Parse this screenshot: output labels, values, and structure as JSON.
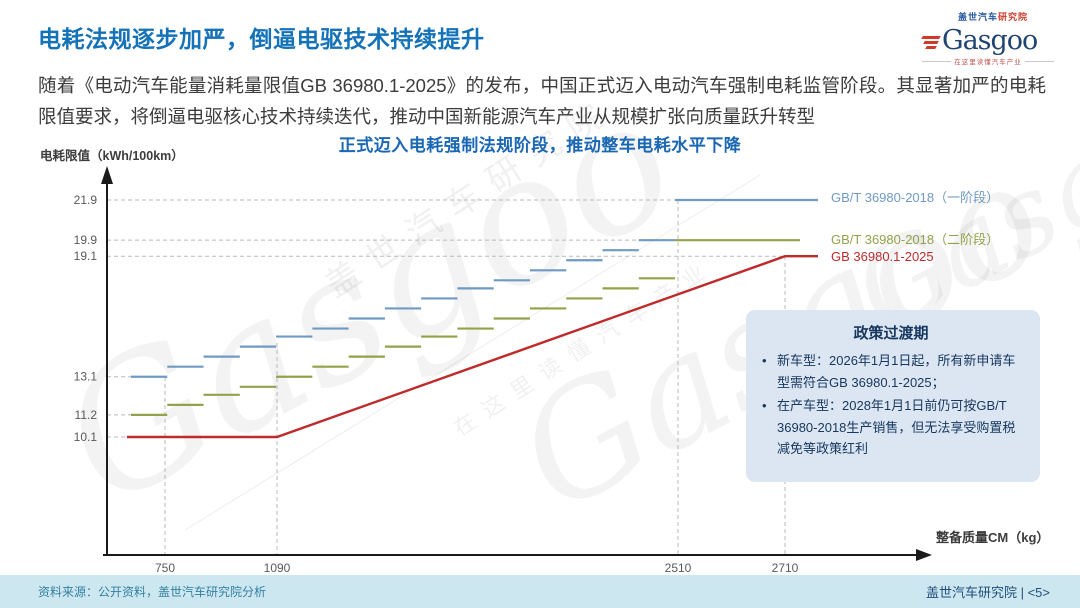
{
  "header": {
    "title": "电耗法规逐步加严，倒逼电驱技术持续提升",
    "logo": {
      "brand": "Gasgoo",
      "cn_blue": "盖世汽车",
      "cn_red": "研究院",
      "tagline": "在这里读懂汽车产业"
    }
  },
  "intro": {
    "text": "随着《电动汽车能量消耗量限值GB 36980.1-2025》的发布，中国正式迈入电动汽车强制电耗监管阶段。其显著加严的电耗限值要求，将倒逼电驱核心技术持续迭代，推动中国新能源汽车产业从规模扩张向质量跃升转型"
  },
  "chart_data": {
    "type": "line",
    "title": "正式迈入电耗强制法规阶段，推动整车电耗水平下降",
    "ylabel": "电耗限值（kWh/100km）",
    "xlabel": "整备质量CM（kg）",
    "ylim": [
      9.5,
      23
    ],
    "grid": "dashed",
    "legend_position": "right-of-lines",
    "y_ticks": [
      21.9,
      19.9,
      19.1,
      13.1,
      11.2,
      10.1
    ],
    "x_ticks": [
      750,
      1090,
      2510,
      2710
    ],
    "series": [
      {
        "name": "GB/T 36980-2018（一阶段）",
        "style": "step",
        "color": "#6f9ac3",
        "steps": [
          13.1,
          13.6,
          14.1,
          14.6,
          15.1,
          15.5,
          16.0,
          16.5,
          17.0,
          17.5,
          17.9,
          18.4,
          18.9,
          19.4,
          19.9
        ],
        "final_value": 21.9,
        "final_from_mass": 2510
      },
      {
        "name": "GB/T 36980-2018（二阶段）",
        "style": "step",
        "color": "#95a14a",
        "steps": [
          11.2,
          11.7,
          12.2,
          12.6,
          13.1,
          13.6,
          14.1,
          14.6,
          15.1,
          15.5,
          16.0,
          16.5,
          17.0,
          17.5,
          18.0
        ],
        "final_value": 19.9,
        "final_from_mass": 2510
      },
      {
        "name": "GB 36980.1-2025",
        "style": "line",
        "color": "#bf2b2b",
        "flat_value": 10.1,
        "flat_until_mass": 1090,
        "peak_value": 19.1,
        "peak_at_mass": 2710
      }
    ]
  },
  "policy_box": {
    "title": "政策过渡期",
    "items": [
      "新车型：2026年1月1日起，所有新申请车型需符合GB 36980.1-2025；",
      "在产车型：2028年1月1日前仍可按GB/T 36980-2018生产销售，但无法享受购置税减免等政策红利"
    ]
  },
  "footer": {
    "source": "资料来源：公开资料，盖世汽车研究院分析",
    "page": "盖世汽车研究院 | <5>"
  },
  "watermarks": {
    "script1": "Gasgoo",
    "script2": "Gasgoo",
    "script3": "Gasgoo",
    "cn1": "盖世汽车研究院",
    "cn2": "在这里读懂汽车产业"
  }
}
